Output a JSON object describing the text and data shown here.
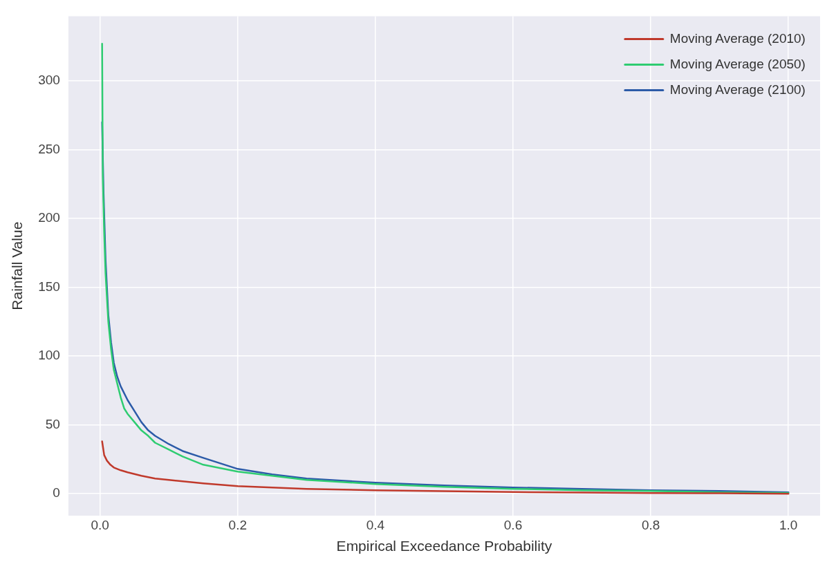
{
  "chart_data": {
    "type": "line",
    "xlabel": "Empirical Exceedance Probability",
    "ylabel": "Rainfall Value",
    "xlim": [
      -0.046,
      1.046
    ],
    "ylim": [
      -16,
      347
    ],
    "xticks": [
      {
        "value": 0,
        "label": "0.0"
      },
      {
        "value": 0.2,
        "label": "0.2"
      },
      {
        "value": 0.4,
        "label": "0.4"
      },
      {
        "value": 0.6,
        "label": "0.6"
      },
      {
        "value": 0.8,
        "label": "0.8"
      },
      {
        "value": 1,
        "label": "1.0"
      }
    ],
    "yticks": [
      0,
      50,
      100,
      150,
      200,
      250,
      300
    ],
    "grid": true,
    "legend": "top right",
    "marker": "none",
    "line_style": "solid",
    "series": [
      {
        "name": "Moving Average (2010)",
        "color": "#c0392b",
        "x": [
          0.003,
          0.006,
          0.01,
          0.015,
          0.02,
          0.03,
          0.04,
          0.06,
          0.08,
          0.1,
          0.15,
          0.2,
          0.3,
          0.4,
          0.5,
          0.6,
          0.7,
          0.8,
          0.9,
          1.0
        ],
        "values": [
          38,
          28,
          24,
          21,
          19,
          17,
          15.5,
          13,
          11,
          10,
          7.5,
          5.5,
          3.5,
          2.5,
          1.8,
          1.2,
          0.8,
          0.5,
          0.3,
          0
        ]
      },
      {
        "name": "Moving Average (2050)",
        "color": "#2ecc71",
        "x": [
          0.003,
          0.004,
          0.006,
          0.008,
          0.012,
          0.016,
          0.02,
          0.025,
          0.03,
          0.035,
          0.04,
          0.05,
          0.06,
          0.07,
          0.08,
          0.1,
          0.12,
          0.15,
          0.2,
          0.25,
          0.3,
          0.4,
          0.5,
          0.6,
          0.7,
          0.8,
          0.9,
          1.0
        ],
        "values": [
          327,
          230,
          190,
          160,
          125,
          105,
          90,
          80,
          70,
          62,
          58,
          52,
          46,
          42,
          37,
          32,
          27,
          21,
          16,
          13,
          10,
          7,
          5,
          3.5,
          2.5,
          2,
          1,
          0.5
        ]
      },
      {
        "name": "Moving Average (2100)",
        "color": "#2c5ba8",
        "x": [
          0.003,
          0.005,
          0.008,
          0.012,
          0.016,
          0.02,
          0.025,
          0.03,
          0.04,
          0.05,
          0.06,
          0.07,
          0.08,
          0.1,
          0.12,
          0.15,
          0.2,
          0.25,
          0.3,
          0.4,
          0.5,
          0.6,
          0.7,
          0.8,
          0.9,
          1.0
        ],
        "values": [
          270,
          220,
          170,
          130,
          110,
          95,
          85,
          78,
          68,
          60,
          52,
          46,
          42,
          36,
          31,
          26,
          18,
          14,
          11,
          8,
          6,
          4.5,
          3.5,
          2.5,
          2,
          1
        ]
      }
    ]
  }
}
